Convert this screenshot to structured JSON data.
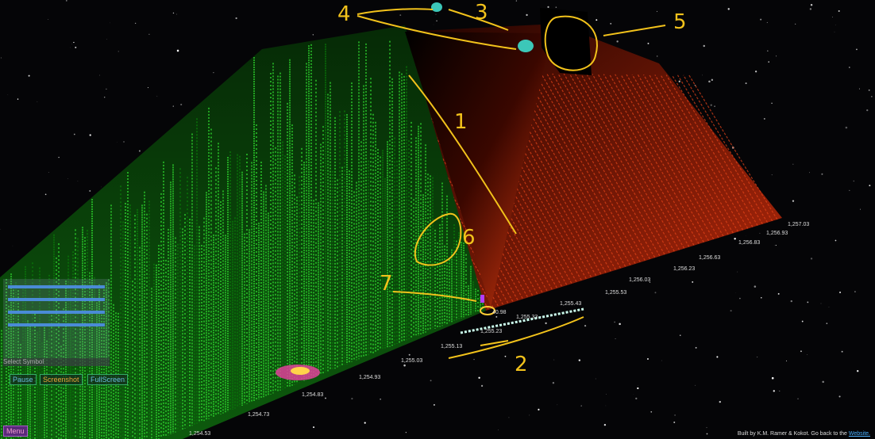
{
  "annotations": [
    "1",
    "2",
    "3",
    "4",
    "5",
    "6",
    "7"
  ],
  "price_labels": [
    "1,254.53",
    "1,254.73",
    "1,254.83",
    "1,254.93",
    "1,255.03",
    "1,255.13",
    "1,255.23",
    "1,255.33",
    "1,255.43",
    "1,255.53",
    "1,256.03",
    "1,256.23",
    "1,256.63",
    "1,256.83",
    "1,256.93",
    "1,257.03"
  ],
  "tip_label": "40.98",
  "controls": {
    "pause": "Pause",
    "screenshot": "Screenshot",
    "fullscreen": "FullScreen",
    "menu": "Menu",
    "symbol": "Select Symbol"
  },
  "footer": {
    "text": "Built by K.M. Ramer & Kokot. Go back to the",
    "link": "Website."
  }
}
